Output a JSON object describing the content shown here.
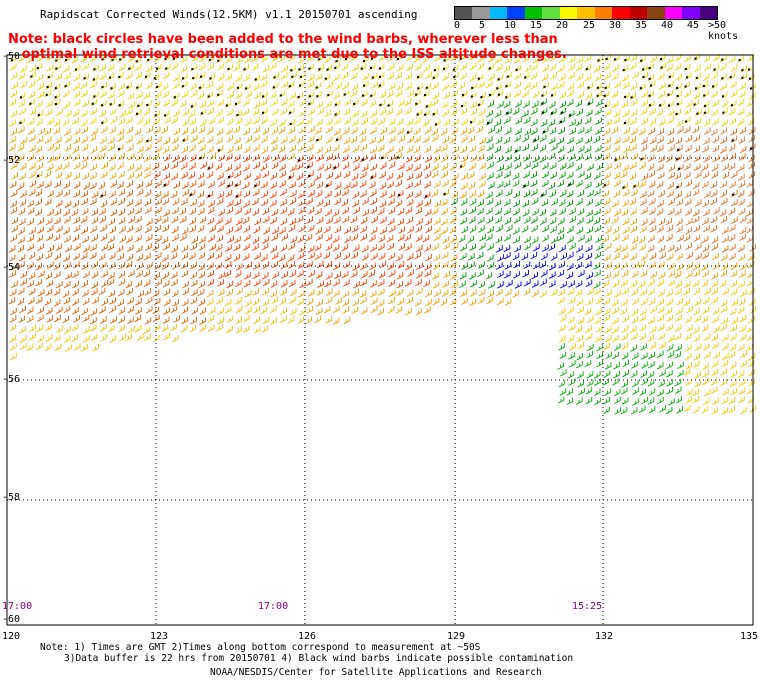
{
  "title": "Rapidscat Corrected Winds(12.5KM) v1.1 20150701 ascending",
  "note": "Note: black circles have been added to the wind barbs, wherever less than\n   optimal wind retrieval conditions are met due to the ISS altitude changes.",
  "colorbar": {
    "colors": [
      "#555555",
      "#9a9a9a",
      "#00b8ff",
      "#0040ff",
      "#00c000",
      "#60e040",
      "#f8f800",
      "#ffc000",
      "#ff8000",
      "#ff0000",
      "#c00000",
      "#8b4513",
      "#ff00ff",
      "#8000ff",
      "#4b0082"
    ],
    "labels": [
      "0",
      "5",
      "10",
      "15",
      "20",
      "25",
      "30",
      "35",
      "40",
      "45",
      ">50 knots"
    ]
  },
  "axes": {
    "lon_labels": [
      "120",
      "123",
      "126",
      "129",
      "132",
      "135"
    ],
    "lat_labels": [
      "-50",
      "-52",
      "-54",
      "-56",
      "-58",
      "-60"
    ]
  },
  "times": [
    "17:00",
    "17:00",
    "15:25"
  ],
  "footer": {
    "line1": "Note: 1) Times are GMT 2)Times along bottom correspond to measurement at ~50S",
    "line2": "3)Data buffer is 22 hrs from 20150701 4) Black wind barbs indicate possible contamination",
    "line3": "NOAA/NESDIS/Center for Satellite Applications and Research"
  }
}
